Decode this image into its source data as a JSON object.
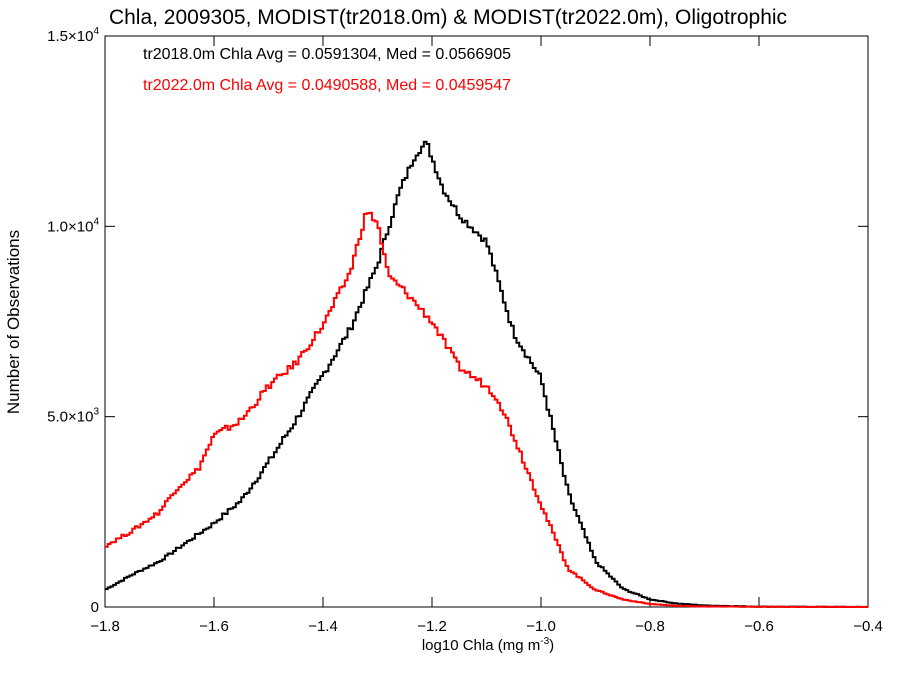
{
  "chart_data": {
    "type": "line",
    "title": "Chla, 2009305, MODIST(tr2018.0m) & MODIST(tr2022.0m), Oligotrophic",
    "xlabel_main": "log10 Chla (mg m",
    "xlabel_sup": "-3",
    "xlabel_end": ")",
    "ylabel": "Number of Observations",
    "xlim": [
      -1.8,
      -0.4
    ],
    "ylim": [
      0,
      15000
    ],
    "x_ticks": [
      -1.8,
      -1.6,
      -1.4,
      -1.2,
      -1.0,
      -0.8,
      -0.6,
      -0.4
    ],
    "x_tick_labels": [
      "−1.8",
      "−1.6",
      "−1.4",
      "−1.2",
      "−1.0",
      "−0.8",
      "−0.6",
      "−0.4"
    ],
    "y_ticks": [
      {
        "value": 0,
        "mantissa": "0",
        "exp": ""
      },
      {
        "value": 5000,
        "mantissa": "5.0×10",
        "exp": "3"
      },
      {
        "value": 10000,
        "mantissa": "1.0×10",
        "exp": "4"
      },
      {
        "value": 15000,
        "mantissa": "1.5×10",
        "exp": "4"
      }
    ],
    "series": [
      {
        "label": "tr2018.0m Chla Avg = 0.0591304, Med = 0.0566905",
        "color": "#000000",
        "x": [
          -1.8,
          -1.75,
          -1.7,
          -1.65,
          -1.6,
          -1.55,
          -1.5,
          -1.45,
          -1.4,
          -1.35,
          -1.3,
          -1.26,
          -1.23,
          -1.21,
          -1.18,
          -1.15,
          -1.1,
          -1.05,
          -1.0,
          -0.95,
          -0.9,
          -0.85,
          -0.8,
          -0.75,
          -0.7,
          -0.6,
          -0.5,
          -0.4
        ],
        "y": [
          450,
          850,
          1200,
          1700,
          2200,
          2800,
          3800,
          4900,
          6100,
          7300,
          9000,
          10900,
          11900,
          12200,
          11000,
          10300,
          9600,
          7200,
          6000,
          3000,
          1200,
          480,
          200,
          90,
          40,
          10,
          5,
          0
        ]
      },
      {
        "label": "tr2022.0m Chla Avg = 0.0490588, Med = 0.0459547",
        "color": "#ff0000",
        "x": [
          -1.8,
          -1.75,
          -1.7,
          -1.67,
          -1.63,
          -1.6,
          -1.55,
          -1.5,
          -1.45,
          -1.4,
          -1.35,
          -1.32,
          -1.3,
          -1.28,
          -1.25,
          -1.2,
          -1.15,
          -1.12,
          -1.1,
          -1.08,
          -1.05,
          -1.0,
          -0.95,
          -0.9,
          -0.85,
          -0.8,
          -0.75,
          -0.7,
          -0.6,
          -0.5,
          -0.4
        ],
        "y": [
          1600,
          2000,
          2500,
          3100,
          3600,
          4500,
          4900,
          5800,
          6400,
          7400,
          8800,
          10400,
          10100,
          8700,
          8300,
          7500,
          6300,
          6000,
          5800,
          5500,
          4500,
          2700,
          1000,
          450,
          200,
          80,
          30,
          15,
          5,
          2,
          0
        ]
      }
    ]
  }
}
